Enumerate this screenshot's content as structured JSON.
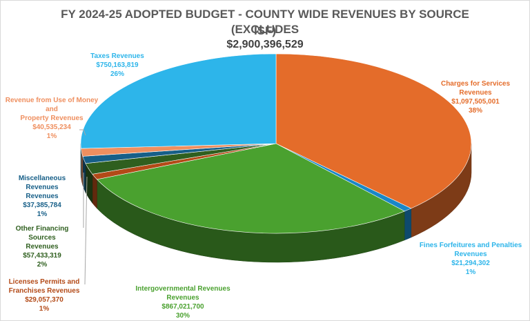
{
  "title_line1": "FY 2024-25 ADOPTED BUDGET -  COUNTY WIDE REVENUES BY SOURCE (EXCLUDES",
  "title_line2": "ISF)",
  "total": "$2,900,396,529",
  "chart_data": {
    "type": "pie",
    "style": "3d-pie",
    "title": "FY 2024-25 ADOPTED BUDGET -  COUNTY WIDE REVENUES BY SOURCE (EXCLUDES ISF)",
    "subtitle": "$2,900,396,529",
    "slices": [
      {
        "name": "Charges for Services Revenues",
        "value": 1097505001,
        "amount": "$1,097,505,001",
        "percent": "38%",
        "color": "#e46c2a"
      },
      {
        "name": "Fines Forfeitures and Penalties Revenues",
        "value": 21294302,
        "amount": "$21,294,302",
        "percent": "1%",
        "color": "#1a87c7"
      },
      {
        "name": "Intergovernmental Revenues Revenues",
        "value": 867021700,
        "amount": "$867,021,700",
        "percent": "30%",
        "color": "#4aa12f"
      },
      {
        "name": "Licenses Permits and Franchises Revenues",
        "value": 29057370,
        "amount": "$29,057,370",
        "percent": "1%",
        "color": "#b34a17"
      },
      {
        "name": "Other Financing Sources Revenues",
        "value": 57433319,
        "amount": "$57,433,319",
        "percent": "2%",
        "color": "#2f5f1f"
      },
      {
        "name": "Miscellaneous Revenues Revenues",
        "value": 37385784,
        "amount": "$37,385,784",
        "percent": "1%",
        "color": "#175f88"
      },
      {
        "name": "Revenue from Use of Money and Property Revenues",
        "value": 40535234,
        "amount": "$40,535,234",
        "percent": "1%",
        "color": "#ef8f5f"
      },
      {
        "name": "Taxes Revenues",
        "value": 750163819,
        "amount": "$750,163,819",
        "percent": "26%",
        "color": "#2db5ea"
      }
    ]
  },
  "labels": {
    "charges": {
      "l1": "Charges for Services Revenues",
      "l2": "$1,097,505,001",
      "l3": "38%"
    },
    "fines": {
      "l1": "Fines Forfeitures and Penalties",
      "l2": "Revenues",
      "l3": "$21,294,302",
      "l4": "1%"
    },
    "intergov": {
      "l1": "Intergovernmental Revenues",
      "l2": "Revenues",
      "l3": "$867,021,700",
      "l4": "30%"
    },
    "licenses": {
      "l1": "Licenses Permits and",
      "l2": "Franchises Revenues",
      "l3": "$29,057,370",
      "l4": "1%"
    },
    "other_fin": {
      "l1": "Other Financing Sources",
      "l2": "Revenues",
      "l3": "$57,433,319",
      "l4": "2%"
    },
    "misc": {
      "l1": "Miscellaneous Revenues",
      "l2": "Revenues",
      "l3": "$37,385,784",
      "l4": "1%"
    },
    "money": {
      "l1": "Revenue from Use of Money and",
      "l2": "Property Revenues",
      "l3": "$40,535,234",
      "l4": "1%"
    },
    "taxes": {
      "l1": "Taxes Revenues",
      "l2": "$750,163,819",
      "l3": "26%"
    }
  },
  "label_colors": {
    "charges": "#e46c2a",
    "fines": "#2db5ea",
    "intergov": "#4aa12f",
    "licenses": "#b34a17",
    "other_fin": "#2f5f1f",
    "misc": "#175f88",
    "money": "#ef8f5f",
    "taxes": "#2db5ea"
  }
}
